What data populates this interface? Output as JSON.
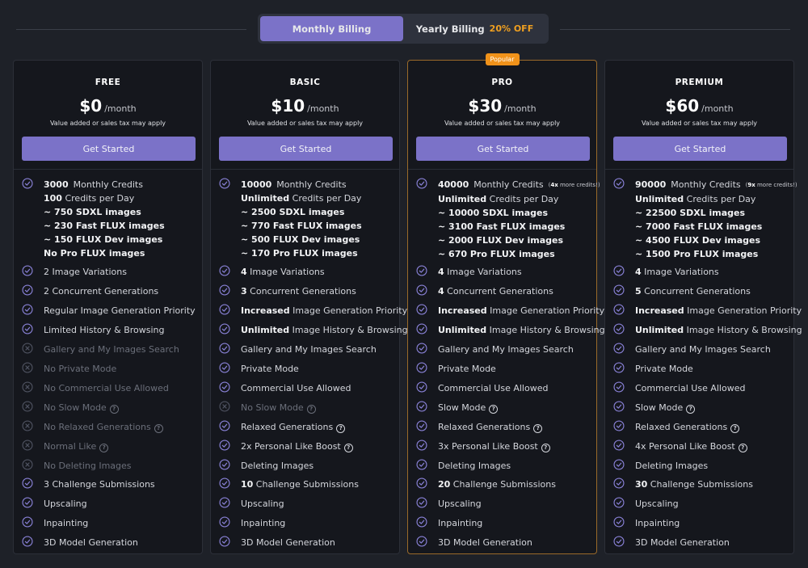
{
  "billing": {
    "monthly_label": "Monthly Billing",
    "yearly_label": "Yearly Billing",
    "yearly_discount": "20% OFF"
  },
  "icons": {
    "included": "check-circle-icon",
    "excluded": "x-circle-icon",
    "help": "question-circle-icon"
  },
  "colors": {
    "accent": "#7b72c8",
    "popular": "#f0921a",
    "discount": "#f0a020"
  },
  "plans": [
    {
      "name": "FREE",
      "price": "$0",
      "period": "/month",
      "tax": "Value added or sales tax may apply",
      "button": "Get Started",
      "credits": {
        "amount": "3000",
        "label": "Monthly Credits",
        "note_strong": "",
        "note": "",
        "lines": [
          {
            "strong": "100",
            "text": " Credits per Day"
          },
          {
            "strong": "~ 750 SDXL images",
            "text": ""
          },
          {
            "strong": "~ 230 Fast FLUX images",
            "text": ""
          },
          {
            "strong": "~ 150 FLUX Dev images",
            "text": ""
          },
          {
            "strong": "No Pro FLUX images",
            "text": ""
          }
        ]
      },
      "features": [
        {
          "strong": "",
          "text": "2 Image Variations",
          "ok": true,
          "help": false
        },
        {
          "strong": "",
          "text": "2 Concurrent Generations",
          "ok": true,
          "help": false
        },
        {
          "strong": "",
          "text": "Regular Image Generation Priority",
          "ok": true,
          "help": false
        },
        {
          "strong": "",
          "text": "Limited History & Browsing",
          "ok": true,
          "help": false
        },
        {
          "strong": "",
          "text": "Gallery and My Images Search",
          "ok": false,
          "help": false
        },
        {
          "strong": "",
          "text": "No Private Mode",
          "ok": false,
          "help": false
        },
        {
          "strong": "",
          "text": "No Commercial Use Allowed",
          "ok": false,
          "help": false
        },
        {
          "strong": "",
          "text": "No Slow Mode",
          "ok": false,
          "help": true
        },
        {
          "strong": "",
          "text": "No Relaxed Generations",
          "ok": false,
          "help": true
        },
        {
          "strong": "",
          "text": "Normal Like",
          "ok": false,
          "help": true
        },
        {
          "strong": "",
          "text": "No Deleting Images",
          "ok": false,
          "help": false
        },
        {
          "strong": "",
          "text": "3 Challenge Submissions",
          "ok": true,
          "help": false
        },
        {
          "strong": "",
          "text": "Upscaling",
          "ok": true,
          "help": false
        },
        {
          "strong": "",
          "text": "Inpainting",
          "ok": true,
          "help": false
        },
        {
          "strong": "",
          "text": "3D Model Generation",
          "ok": true,
          "help": false
        }
      ]
    },
    {
      "name": "BASIC",
      "price": "$10",
      "period": "/month",
      "tax": "Value added or sales tax may apply",
      "button": "Get Started",
      "credits": {
        "amount": "10000",
        "label": "Monthly Credits",
        "note_strong": "",
        "note": "",
        "lines": [
          {
            "strong": "Unlimited",
            "text": " Credits per Day"
          },
          {
            "strong": "~ 2500 SDXL images",
            "text": ""
          },
          {
            "strong": "~ 770 Fast FLUX images",
            "text": ""
          },
          {
            "strong": "~ 500 FLUX Dev images",
            "text": ""
          },
          {
            "strong": "~ 170 Pro FLUX images",
            "text": ""
          }
        ]
      },
      "features": [
        {
          "strong": "4",
          "text": " Image Variations",
          "ok": true,
          "help": false
        },
        {
          "strong": "3",
          "text": " Concurrent Generations",
          "ok": true,
          "help": false
        },
        {
          "strong": "Increased",
          "text": " Image Generation Priority",
          "ok": true,
          "help": false
        },
        {
          "strong": "Unlimited",
          "text": " Image History & Browsing",
          "ok": true,
          "help": false
        },
        {
          "strong": "",
          "text": "Gallery and My Images Search",
          "ok": true,
          "help": false
        },
        {
          "strong": "",
          "text": "Private Mode",
          "ok": true,
          "help": false
        },
        {
          "strong": "",
          "text": "Commercial Use Allowed",
          "ok": true,
          "help": false
        },
        {
          "strong": "",
          "text": "No Slow Mode",
          "ok": false,
          "help": true
        },
        {
          "strong": "",
          "text": "Relaxed Generations",
          "ok": true,
          "help": true
        },
        {
          "strong": "",
          "text": "2x Personal Like Boost",
          "ok": true,
          "help": true
        },
        {
          "strong": "",
          "text": "Deleting Images",
          "ok": true,
          "help": false
        },
        {
          "strong": "10",
          "text": " Challenge Submissions",
          "ok": true,
          "help": false
        },
        {
          "strong": "",
          "text": "Upscaling",
          "ok": true,
          "help": false
        },
        {
          "strong": "",
          "text": "Inpainting",
          "ok": true,
          "help": false
        },
        {
          "strong": "",
          "text": "3D Model Generation",
          "ok": true,
          "help": false
        }
      ]
    },
    {
      "name": "PRO",
      "price": "$30",
      "period": "/month",
      "tax": "Value added or sales tax may apply",
      "button": "Get Started",
      "badge": "Popular",
      "credits": {
        "amount": "40000",
        "label": "Monthly Credits",
        "note_strong": "4x",
        "note": " more credits!",
        "lines": [
          {
            "strong": "Unlimited",
            "text": " Credits per Day"
          },
          {
            "strong": "~ 10000 SDXL images",
            "text": ""
          },
          {
            "strong": "~ 3100 Fast FLUX images",
            "text": ""
          },
          {
            "strong": "~ 2000 FLUX Dev images",
            "text": ""
          },
          {
            "strong": "~ 670 Pro FLUX images",
            "text": ""
          }
        ]
      },
      "features": [
        {
          "strong": "4",
          "text": " Image Variations",
          "ok": true,
          "help": false
        },
        {
          "strong": "4",
          "text": " Concurrent Generations",
          "ok": true,
          "help": false
        },
        {
          "strong": "Increased",
          "text": " Image Generation Priority",
          "ok": true,
          "help": false
        },
        {
          "strong": "Unlimited",
          "text": " Image History & Browsing",
          "ok": true,
          "help": false
        },
        {
          "strong": "",
          "text": "Gallery and My Images Search",
          "ok": true,
          "help": false
        },
        {
          "strong": "",
          "text": "Private Mode",
          "ok": true,
          "help": false
        },
        {
          "strong": "",
          "text": "Commercial Use Allowed",
          "ok": true,
          "help": false
        },
        {
          "strong": "",
          "text": "Slow Mode",
          "ok": true,
          "help": true
        },
        {
          "strong": "",
          "text": "Relaxed Generations",
          "ok": true,
          "help": true
        },
        {
          "strong": "",
          "text": "3x Personal Like Boost",
          "ok": true,
          "help": true
        },
        {
          "strong": "",
          "text": "Deleting Images",
          "ok": true,
          "help": false
        },
        {
          "strong": "20",
          "text": " Challenge Submissions",
          "ok": true,
          "help": false
        },
        {
          "strong": "",
          "text": "Upscaling",
          "ok": true,
          "help": false
        },
        {
          "strong": "",
          "text": "Inpainting",
          "ok": true,
          "help": false
        },
        {
          "strong": "",
          "text": "3D Model Generation",
          "ok": true,
          "help": false
        }
      ]
    },
    {
      "name": "PREMIUM",
      "price": "$60",
      "period": "/month",
      "tax": "Value added or sales tax may apply",
      "button": "Get Started",
      "credits": {
        "amount": "90000",
        "label": "Monthly Credits",
        "note_strong": "9x",
        "note": " more credits!",
        "lines": [
          {
            "strong": "Unlimited",
            "text": " Credits per Day"
          },
          {
            "strong": "~ 22500 SDXL images",
            "text": ""
          },
          {
            "strong": "~ 7000 Fast FLUX images",
            "text": ""
          },
          {
            "strong": "~ 4500 FLUX Dev images",
            "text": ""
          },
          {
            "strong": "~ 1500 Pro FLUX images",
            "text": ""
          }
        ]
      },
      "features": [
        {
          "strong": "4",
          "text": " Image Variations",
          "ok": true,
          "help": false
        },
        {
          "strong": "5",
          "text": " Concurrent Generations",
          "ok": true,
          "help": false
        },
        {
          "strong": "Increased",
          "text": " Image Generation Priority",
          "ok": true,
          "help": false
        },
        {
          "strong": "Unlimited",
          "text": " Image History & Browsing",
          "ok": true,
          "help": false
        },
        {
          "strong": "",
          "text": "Gallery and My Images Search",
          "ok": true,
          "help": false
        },
        {
          "strong": "",
          "text": "Private Mode",
          "ok": true,
          "help": false
        },
        {
          "strong": "",
          "text": "Commercial Use Allowed",
          "ok": true,
          "help": false
        },
        {
          "strong": "",
          "text": "Slow Mode",
          "ok": true,
          "help": true
        },
        {
          "strong": "",
          "text": "Relaxed Generations",
          "ok": true,
          "help": true
        },
        {
          "strong": "",
          "text": "4x Personal Like Boost",
          "ok": true,
          "help": true
        },
        {
          "strong": "",
          "text": "Deleting Images",
          "ok": true,
          "help": false
        },
        {
          "strong": "30",
          "text": " Challenge Submissions",
          "ok": true,
          "help": false
        },
        {
          "strong": "",
          "text": "Upscaling",
          "ok": true,
          "help": false
        },
        {
          "strong": "",
          "text": "Inpainting",
          "ok": true,
          "help": false
        },
        {
          "strong": "",
          "text": "3D Model Generation",
          "ok": true,
          "help": false
        }
      ]
    }
  ]
}
